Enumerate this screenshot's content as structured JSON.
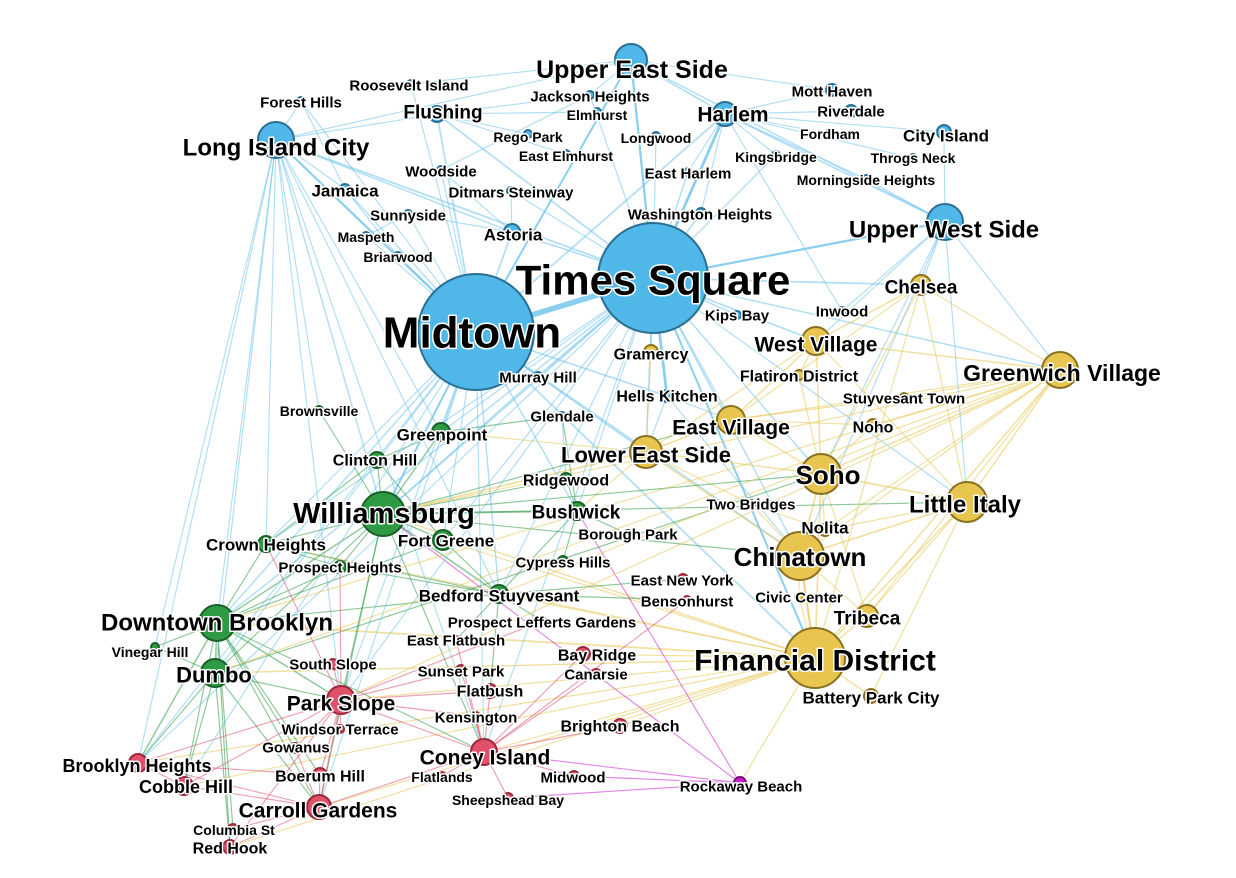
{
  "palette": {
    "Manhattan North & Queens": {
      "fill": "#4fb8e8",
      "stroke": "#2b6f94",
      "edge": "#6ec3ec"
    },
    "Manhattan South": {
      "fill": "#e8c54f",
      "stroke": "#8a7120",
      "edge": "#e8c54f"
    },
    "North Brooklyn": {
      "fill": "#2e9a43",
      "stroke": "#1a6027",
      "edge": "#2e9a43"
    },
    "South Brooklyn": {
      "fill": "#e0506a",
      "stroke": "#9a2a3c",
      "edge": "#e0506a"
    },
    "Rockaway": {
      "fill": "#cc22cc",
      "stroke": "#7a107a",
      "edge": "#cc22cc"
    }
  },
  "nodes": [
    {
      "id": "times-square",
      "label": "Times Square",
      "group": "Manhattan North & Queens",
      "size": 55
    },
    {
      "id": "midtown",
      "label": "Midtown",
      "group": "Manhattan North & Queens",
      "size": 58
    },
    {
      "id": "upper-east-side",
      "label": "Upper East Side",
      "group": "Manhattan North & Queens",
      "size": 16
    },
    {
      "id": "upper-west-side",
      "label": "Upper West Side",
      "group": "Manhattan North & Queens",
      "size": 18
    },
    {
      "id": "long-island-city",
      "label": "Long Island City",
      "group": "Manhattan North & Queens",
      "size": 18
    },
    {
      "id": "harlem",
      "label": "Harlem",
      "group": "Manhattan North & Queens",
      "size": 12
    },
    {
      "id": "flushing",
      "label": "Flushing",
      "group": "Manhattan North & Queens",
      "size": 8
    },
    {
      "id": "astoria",
      "label": "Astoria",
      "group": "Manhattan North & Queens",
      "size": 8
    },
    {
      "id": "roosevelt-island",
      "label": "Roosevelt Island",
      "group": "Manhattan North & Queens",
      "size": 4
    },
    {
      "id": "forest-hills",
      "label": "Forest Hills",
      "group": "Manhattan North & Queens",
      "size": 4
    },
    {
      "id": "jackson-heights",
      "label": "Jackson Heights",
      "group": "Manhattan North & Queens",
      "size": 4
    },
    {
      "id": "elmhurst",
      "label": "Elmhurst",
      "group": "Manhattan North & Queens",
      "size": 4
    },
    {
      "id": "rego-park",
      "label": "Rego Park",
      "group": "Manhattan North & Queens",
      "size": 4
    },
    {
      "id": "longwood",
      "label": "Longwood",
      "group": "Manhattan North & Queens",
      "size": 4
    },
    {
      "id": "east-elmhurst",
      "label": "East Elmhurst",
      "group": "Manhattan North & Queens",
      "size": 4
    },
    {
      "id": "kingsbridge",
      "label": "Kingsbridge",
      "group": "Manhattan North & Queens",
      "size": 4
    },
    {
      "id": "mott-haven",
      "label": "Mott Haven",
      "group": "Manhattan North & Queens",
      "size": 6
    },
    {
      "id": "riverdale",
      "label": "Riverdale",
      "group": "Manhattan North & Queens",
      "size": 6
    },
    {
      "id": "fordham",
      "label": "Fordham",
      "group": "Manhattan North & Queens",
      "size": 5
    },
    {
      "id": "city-island",
      "label": "City Island",
      "group": "Manhattan North & Queens",
      "size": 7
    },
    {
      "id": "throgs-neck",
      "label": "Throgs Neck",
      "group": "Manhattan North & Queens",
      "size": 4
    },
    {
      "id": "morningside-heights",
      "label": "Morningside Heights",
      "group": "Manhattan North & Queens",
      "size": 4
    },
    {
      "id": "woodside",
      "label": "Woodside",
      "group": "Manhattan North & Queens",
      "size": 4
    },
    {
      "id": "east-harlem",
      "label": "East Harlem",
      "group": "Manhattan North & Queens",
      "size": 4
    },
    {
      "id": "jamaica",
      "label": "Jamaica",
      "group": "Manhattan North & Queens",
      "size": 5
    },
    {
      "id": "ditmars-steinway",
      "label": "Ditmars Steinway",
      "group": "Manhattan North & Queens",
      "size": 4
    },
    {
      "id": "sunnyside",
      "label": "Sunnyside",
      "group": "Manhattan North & Queens",
      "size": 4
    },
    {
      "id": "washington-heights",
      "label": "Washington Heights",
      "group": "Manhattan North & Queens",
      "size": 5
    },
    {
      "id": "maspeth",
      "label": "Maspeth",
      "group": "Manhattan North & Queens",
      "size": 4
    },
    {
      "id": "briarwood",
      "label": "Briarwood",
      "group": "Manhattan North & Queens",
      "size": 4
    },
    {
      "id": "kips-bay",
      "label": "Kips Bay",
      "group": "Manhattan North & Queens",
      "size": 4
    },
    {
      "id": "murray-hill",
      "label": "Murray Hill",
      "group": "Manhattan North & Queens",
      "size": 4
    },
    {
      "id": "hells-kitchen",
      "label": "Hells Kitchen",
      "group": "Manhattan North & Queens",
      "size": 6
    },
    {
      "id": "glendale",
      "label": "Glendale",
      "group": "Manhattan North & Queens",
      "size": 4
    },
    {
      "id": "inwood",
      "label": "Inwood",
      "group": "Manhattan North & Queens",
      "size": 4
    },
    {
      "id": "chelsea",
      "label": "Chelsea",
      "group": "Manhattan South",
      "size": 10
    },
    {
      "id": "west-village",
      "label": "West Village",
      "group": "Manhattan South",
      "size": 14
    },
    {
      "id": "greenwich-village",
      "label": "Greenwich Village",
      "group": "Manhattan South",
      "size": 18
    },
    {
      "id": "gramercy",
      "label": "Gramercy",
      "group": "Manhattan South",
      "size": 7
    },
    {
      "id": "flatiron-district",
      "label": "Flatiron District",
      "group": "Manhattan South",
      "size": 5
    },
    {
      "id": "stuyvesant-town",
      "label": "Stuyvesant Town",
      "group": "Manhattan South",
      "size": 4
    },
    {
      "id": "east-village",
      "label": "East Village",
      "group": "Manhattan South",
      "size": 14
    },
    {
      "id": "noho",
      "label": "Noho",
      "group": "Manhattan South",
      "size": 6
    },
    {
      "id": "lower-east-side",
      "label": "Lower East Side",
      "group": "Manhattan South",
      "size": 16
    },
    {
      "id": "soho",
      "label": "Soho",
      "group": "Manhattan South",
      "size": 20
    },
    {
      "id": "little-italy",
      "label": "Little Italy",
      "group": "Manhattan South",
      "size": 20
    },
    {
      "id": "two-bridges",
      "label": "Two Bridges",
      "group": "Manhattan South",
      "size": 4
    },
    {
      "id": "nolita",
      "label": "Nolita",
      "group": "Manhattan South",
      "size": 6
    },
    {
      "id": "chinatown",
      "label": "Chinatown",
      "group": "Manhattan South",
      "size": 24
    },
    {
      "id": "civic-center",
      "label": "Civic Center",
      "group": "Manhattan South",
      "size": 4
    },
    {
      "id": "tribeca",
      "label": "Tribeca",
      "group": "Manhattan South",
      "size": 11
    },
    {
      "id": "financial-district",
      "label": "Financial District",
      "group": "Manhattan South",
      "size": 30
    },
    {
      "id": "battery-park-city",
      "label": "Battery Park City",
      "group": "Manhattan South",
      "size": 7
    },
    {
      "id": "brownsville",
      "label": "Brownsville",
      "group": "North Brooklyn",
      "size": 4
    },
    {
      "id": "greenpoint",
      "label": "Greenpoint",
      "group": "North Brooklyn",
      "size": 9
    },
    {
      "id": "clinton-hill",
      "label": "Clinton Hill",
      "group": "North Brooklyn",
      "size": 8
    },
    {
      "id": "williamsburg",
      "label": "Williamsburg",
      "group": "North Brooklyn",
      "size": 22
    },
    {
      "id": "ridgewood",
      "label": "Ridgewood",
      "group": "North Brooklyn",
      "size": 6
    },
    {
      "id": "bushwick",
      "label": "Bushwick",
      "group": "North Brooklyn",
      "size": 9
    },
    {
      "id": "borough-park",
      "label": "Borough Park",
      "group": "North Brooklyn",
      "size": 4
    },
    {
      "id": "fort-greene",
      "label": "Fort Greene",
      "group": "North Brooklyn",
      "size": 10
    },
    {
      "id": "cypress-hills",
      "label": "Cypress Hills",
      "group": "North Brooklyn",
      "size": 5
    },
    {
      "id": "crown-heights",
      "label": "Crown Heights",
      "group": "North Brooklyn",
      "size": 8
    },
    {
      "id": "prospect-heights",
      "label": "Prospect Heights",
      "group": "North Brooklyn",
      "size": 6
    },
    {
      "id": "bedford-stuyvesant",
      "label": "Bedford Stuyvesant",
      "group": "North Brooklyn",
      "size": 9
    },
    {
      "id": "downtown-brooklyn",
      "label": "Downtown Brooklyn",
      "group": "North Brooklyn",
      "size": 18
    },
    {
      "id": "vinegar-hill",
      "label": "Vinegar Hill",
      "group": "North Brooklyn",
      "size": 4
    },
    {
      "id": "dumbo",
      "label": "Dumbo",
      "group": "North Brooklyn",
      "size": 14
    },
    {
      "id": "east-new-york",
      "label": "East New York",
      "group": "South Brooklyn",
      "size": 5
    },
    {
      "id": "bensonhurst",
      "label": "Bensonhurst",
      "group": "South Brooklyn",
      "size": 4
    },
    {
      "id": "prospect-lefferts-gardens",
      "label": "Prospect Lefferts Gardens",
      "group": "South Brooklyn",
      "size": 4
    },
    {
      "id": "east-flatbush",
      "label": "East Flatbush",
      "group": "South Brooklyn",
      "size": 4
    },
    {
      "id": "south-slope",
      "label": "South Slope",
      "group": "South Brooklyn",
      "size": 5
    },
    {
      "id": "sunset-park",
      "label": "Sunset Park",
      "group": "South Brooklyn",
      "size": 5
    },
    {
      "id": "bay-ridge",
      "label": "Bay Ridge",
      "group": "South Brooklyn",
      "size": 7
    },
    {
      "id": "canarsie",
      "label": "Canarsie",
      "group": "South Brooklyn",
      "size": 5
    },
    {
      "id": "flatbush",
      "label": "Flatbush",
      "group": "South Brooklyn",
      "size": 7
    },
    {
      "id": "park-slope",
      "label": "Park Slope",
      "group": "South Brooklyn",
      "size": 14
    },
    {
      "id": "kensington",
      "label": "Kensington",
      "group": "South Brooklyn",
      "size": 4
    },
    {
      "id": "brighton-beach",
      "label": "Brighton Beach",
      "group": "South Brooklyn",
      "size": 7
    },
    {
      "id": "windsor-terrace",
      "label": "Windsor Terrace",
      "group": "South Brooklyn",
      "size": 4
    },
    {
      "id": "gowanus",
      "label": "Gowanus",
      "group": "South Brooklyn",
      "size": 5
    },
    {
      "id": "coney-island",
      "label": "Coney Island",
      "group": "South Brooklyn",
      "size": 13
    },
    {
      "id": "brooklyn-heights",
      "label": "Brooklyn Heights",
      "group": "South Brooklyn",
      "size": 9
    },
    {
      "id": "boerum-hill",
      "label": "Boerum Hill",
      "group": "South Brooklyn",
      "size": 7
    },
    {
      "id": "flatlands",
      "label": "Flatlands",
      "group": "South Brooklyn",
      "size": 4
    },
    {
      "id": "midwood",
      "label": "Midwood",
      "group": "South Brooklyn",
      "size": 5
    },
    {
      "id": "cobble-hill",
      "label": "Cobble Hill",
      "group": "South Brooklyn",
      "size": 9
    },
    {
      "id": "sheepshead-bay",
      "label": "Sheepshead Bay",
      "group": "South Brooklyn",
      "size": 5
    },
    {
      "id": "carroll-gardens",
      "label": "Carroll Gardens",
      "group": "South Brooklyn",
      "size": 12
    },
    {
      "id": "columbia-st",
      "label": "Columbia St",
      "group": "South Brooklyn",
      "size": 5
    },
    {
      "id": "red-hook",
      "label": "Red Hook",
      "group": "South Brooklyn",
      "size": 7
    },
    {
      "id": "rockaway-beach",
      "label": "Rockaway Beach",
      "group": "Rockaway",
      "size": 6
    }
  ]
}
